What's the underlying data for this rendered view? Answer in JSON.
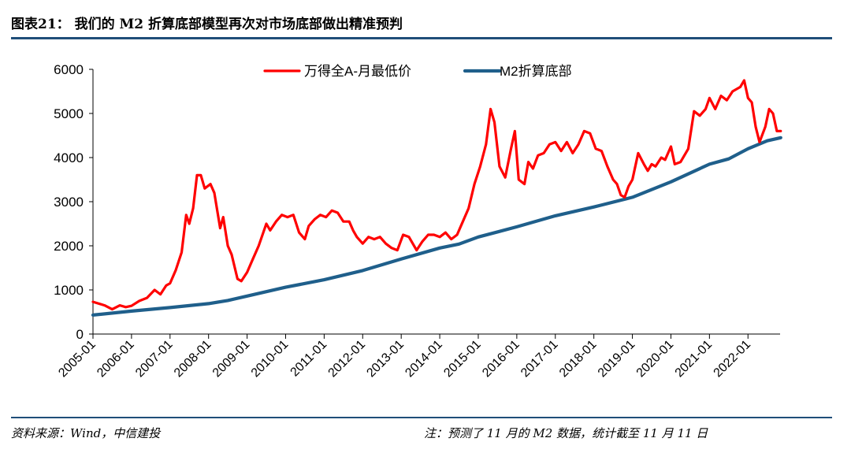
{
  "figure": {
    "title": "图表21： 我们的 M2 折算底部模型再次对市场底部做出精准预判",
    "source": "资料来源：Wind，中信建投",
    "note": "注：预测了 11 月的 M2 数据，统计截至 11 月 11 日"
  },
  "colors": {
    "series1": "#ff0000",
    "series2": "#1f5f8b",
    "rule": "#1f4e79"
  },
  "chart_data": {
    "type": "line",
    "title": "",
    "xlabel": "",
    "ylabel": "",
    "ylim": [
      0,
      6000
    ],
    "yticks": [
      "0",
      "1000",
      "2000",
      "3000",
      "4000",
      "5000",
      "6000"
    ],
    "xticks": [
      "2005-01",
      "2006-01",
      "2007-01",
      "2008-01",
      "2009-01",
      "2010-01",
      "2011-01",
      "2012-01",
      "2013-01",
      "2014-01",
      "2015-01",
      "2016-01",
      "2017-01",
      "2018-01",
      "2019-01",
      "2020-01",
      "2021-01",
      "2022-01"
    ],
    "x_range": [
      "2005-01",
      "2022-11"
    ],
    "legend_position": "top-center",
    "series": [
      {
        "name": "万得全A-月最低价",
        "color": "#ff0000",
        "points": [
          [
            2005.0,
            730
          ],
          [
            2005.3,
            650
          ],
          [
            2005.5,
            560
          ],
          [
            2005.7,
            650
          ],
          [
            2005.85,
            610
          ],
          [
            2006.0,
            640
          ],
          [
            2006.2,
            750
          ],
          [
            2006.4,
            820
          ],
          [
            2006.6,
            1000
          ],
          [
            2006.75,
            900
          ],
          [
            2006.9,
            1100
          ],
          [
            2007.0,
            1150
          ],
          [
            2007.15,
            1450
          ],
          [
            2007.3,
            1850
          ],
          [
            2007.42,
            2700
          ],
          [
            2007.5,
            2500
          ],
          [
            2007.6,
            2850
          ],
          [
            2007.7,
            3600
          ],
          [
            2007.8,
            3600
          ],
          [
            2007.9,
            3300
          ],
          [
            2008.05,
            3400
          ],
          [
            2008.15,
            3200
          ],
          [
            2008.3,
            2400
          ],
          [
            2008.38,
            2650
          ],
          [
            2008.5,
            2000
          ],
          [
            2008.6,
            1800
          ],
          [
            2008.75,
            1250
          ],
          [
            2008.85,
            1200
          ],
          [
            2009.0,
            1400
          ],
          [
            2009.15,
            1700
          ],
          [
            2009.3,
            2000
          ],
          [
            2009.5,
            2500
          ],
          [
            2009.6,
            2350
          ],
          [
            2009.75,
            2550
          ],
          [
            2009.9,
            2700
          ],
          [
            2010.05,
            2650
          ],
          [
            2010.2,
            2700
          ],
          [
            2010.35,
            2300
          ],
          [
            2010.5,
            2150
          ],
          [
            2010.6,
            2450
          ],
          [
            2010.75,
            2600
          ],
          [
            2010.9,
            2700
          ],
          [
            2011.05,
            2650
          ],
          [
            2011.2,
            2800
          ],
          [
            2011.35,
            2750
          ],
          [
            2011.5,
            2550
          ],
          [
            2011.65,
            2550
          ],
          [
            2011.75,
            2350
          ],
          [
            2011.85,
            2200
          ],
          [
            2012.0,
            2050
          ],
          [
            2012.15,
            2200
          ],
          [
            2012.3,
            2150
          ],
          [
            2012.45,
            2200
          ],
          [
            2012.6,
            2050
          ],
          [
            2012.75,
            1950
          ],
          [
            2012.9,
            1900
          ],
          [
            2013.05,
            2250
          ],
          [
            2013.2,
            2200
          ],
          [
            2013.4,
            1900
          ],
          [
            2013.55,
            2100
          ],
          [
            2013.7,
            2250
          ],
          [
            2013.85,
            2250
          ],
          [
            2014.0,
            2200
          ],
          [
            2014.15,
            2300
          ],
          [
            2014.3,
            2150
          ],
          [
            2014.45,
            2250
          ],
          [
            2014.6,
            2550
          ],
          [
            2014.75,
            2850
          ],
          [
            2014.9,
            3400
          ],
          [
            2015.05,
            3800
          ],
          [
            2015.2,
            4300
          ],
          [
            2015.32,
            5100
          ],
          [
            2015.42,
            4800
          ],
          [
            2015.55,
            3800
          ],
          [
            2015.7,
            3550
          ],
          [
            2015.85,
            4200
          ],
          [
            2015.95,
            4600
          ],
          [
            2016.05,
            3500
          ],
          [
            2016.2,
            3400
          ],
          [
            2016.3,
            3900
          ],
          [
            2016.42,
            3750
          ],
          [
            2016.55,
            4050
          ],
          [
            2016.7,
            4100
          ],
          [
            2016.85,
            4300
          ],
          [
            2017.0,
            4350
          ],
          [
            2017.15,
            4150
          ],
          [
            2017.3,
            4350
          ],
          [
            2017.45,
            4100
          ],
          [
            2017.6,
            4300
          ],
          [
            2017.75,
            4600
          ],
          [
            2017.9,
            4550
          ],
          [
            2018.05,
            4200
          ],
          [
            2018.2,
            4150
          ],
          [
            2018.35,
            3800
          ],
          [
            2018.5,
            3500
          ],
          [
            2018.6,
            3400
          ],
          [
            2018.7,
            3150
          ],
          [
            2018.8,
            3100
          ],
          [
            2018.9,
            3350
          ],
          [
            2019.0,
            3500
          ],
          [
            2019.15,
            4100
          ],
          [
            2019.3,
            3850
          ],
          [
            2019.4,
            3700
          ],
          [
            2019.5,
            3850
          ],
          [
            2019.6,
            3800
          ],
          [
            2019.75,
            4000
          ],
          [
            2019.85,
            3950
          ],
          [
            2020.0,
            4250
          ],
          [
            2020.1,
            3850
          ],
          [
            2020.25,
            3900
          ],
          [
            2020.45,
            4200
          ],
          [
            2020.6,
            5050
          ],
          [
            2020.75,
            4950
          ],
          [
            2020.9,
            5100
          ],
          [
            2021.0,
            5350
          ],
          [
            2021.15,
            5100
          ],
          [
            2021.3,
            5400
          ],
          [
            2021.45,
            5300
          ],
          [
            2021.6,
            5500
          ],
          [
            2021.8,
            5600
          ],
          [
            2021.9,
            5750
          ],
          [
            2022.0,
            5350
          ],
          [
            2022.1,
            5250
          ],
          [
            2022.2,
            4700
          ],
          [
            2022.3,
            4350
          ],
          [
            2022.45,
            4700
          ],
          [
            2022.55,
            5100
          ],
          [
            2022.65,
            5000
          ],
          [
            2022.75,
            4600
          ],
          [
            2022.85,
            4600
          ]
        ]
      },
      {
        "name": "M2折算底部",
        "color": "#1f5f8b",
        "points": [
          [
            2005.0,
            430
          ],
          [
            2006.0,
            520
          ],
          [
            2007.0,
            600
          ],
          [
            2008.0,
            690
          ],
          [
            2008.5,
            760
          ],
          [
            2009.0,
            860
          ],
          [
            2010.0,
            1060
          ],
          [
            2011.0,
            1230
          ],
          [
            2012.0,
            1440
          ],
          [
            2013.0,
            1700
          ],
          [
            2014.0,
            1950
          ],
          [
            2014.5,
            2040
          ],
          [
            2015.0,
            2200
          ],
          [
            2016.0,
            2430
          ],
          [
            2017.0,
            2680
          ],
          [
            2018.0,
            2880
          ],
          [
            2019.0,
            3100
          ],
          [
            2020.0,
            3450
          ],
          [
            2021.0,
            3850
          ],
          [
            2021.5,
            3970
          ],
          [
            2022.0,
            4200
          ],
          [
            2022.5,
            4380
          ],
          [
            2022.85,
            4450
          ]
        ]
      }
    ]
  }
}
